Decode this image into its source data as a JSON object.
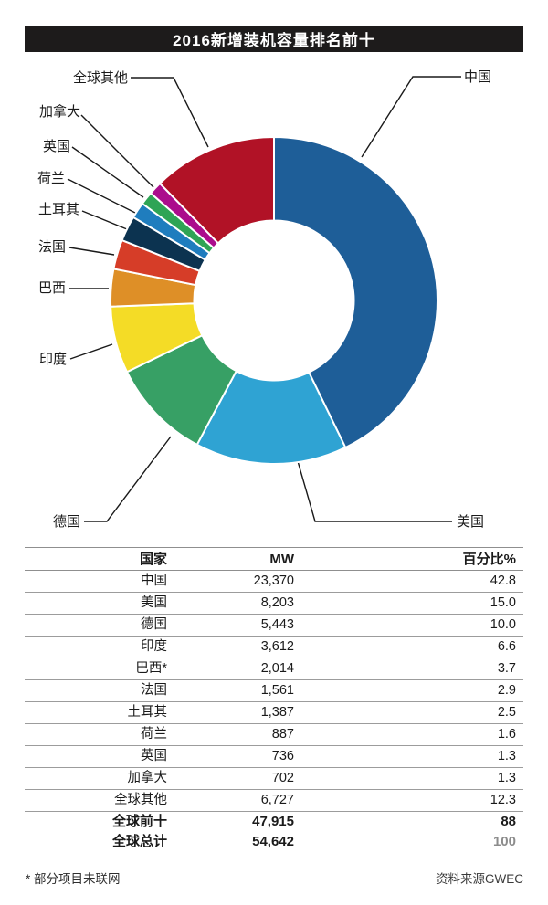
{
  "title": "2016新增装机容量排名前十",
  "chart_data": {
    "type": "pie",
    "subtype": "donut",
    "title": "2016新增装机容量排名前十",
    "unit": "MW",
    "slices": [
      {
        "id": "china",
        "label": "中国",
        "mw": 23370,
        "pct": 42.8,
        "color": "#1e5e98"
      },
      {
        "id": "usa",
        "label": "美国",
        "mw": 8203,
        "pct": 15.0,
        "color": "#2fa3d3"
      },
      {
        "id": "germany",
        "label": "德国",
        "mw": 5443,
        "pct": 10.0,
        "color": "#37a065"
      },
      {
        "id": "india",
        "label": "印度",
        "mw": 3612,
        "pct": 6.6,
        "color": "#f4dc26"
      },
      {
        "id": "brazil",
        "label": "巴西",
        "mw": 2014,
        "pct": 3.7,
        "color": "#de8f27"
      },
      {
        "id": "france",
        "label": "法国",
        "mw": 1561,
        "pct": 2.9,
        "color": "#d63d28"
      },
      {
        "id": "turkey",
        "label": "土耳其",
        "mw": 1387,
        "pct": 2.5,
        "color": "#0c3350"
      },
      {
        "id": "netherlands",
        "label": "荷兰",
        "mw": 887,
        "pct": 1.6,
        "color": "#1f7dbe"
      },
      {
        "id": "uk",
        "label": "英国",
        "mw": 736,
        "pct": 1.3,
        "color": "#2fa455"
      },
      {
        "id": "canada",
        "label": "加拿大",
        "mw": 702,
        "pct": 1.3,
        "color": "#ab0d8c"
      },
      {
        "id": "rest",
        "label": "全球其他",
        "mw": 6727,
        "pct": 12.3,
        "color": "#b11226"
      }
    ]
  },
  "table": {
    "headers": [
      "国家",
      "MW",
      "百分比%"
    ],
    "rows": [
      {
        "country": "中国",
        "mw": "23,370",
        "pct": "42.8"
      },
      {
        "country": "美国",
        "mw": "8,203",
        "pct": "15.0"
      },
      {
        "country": "德国",
        "mw": "5,443",
        "pct": "10.0"
      },
      {
        "country": "印度",
        "mw": "3,612",
        "pct": "6.6"
      },
      {
        "country": "巴西*",
        "mw": "2,014",
        "pct": "3.7"
      },
      {
        "country": "法国",
        "mw": "1,561",
        "pct": "2.9"
      },
      {
        "country": "土耳其",
        "mw": "1,387",
        "pct": "2.5"
      },
      {
        "country": "荷兰",
        "mw": "887",
        "pct": "1.6"
      },
      {
        "country": "英国",
        "mw": "736",
        "pct": "1.3"
      },
      {
        "country": "加拿大",
        "mw": "702",
        "pct": "1.3"
      },
      {
        "country": "全球其他",
        "mw": "6,727",
        "pct": "12.3"
      }
    ],
    "totals": [
      {
        "country": "全球前十",
        "mw": "47,915",
        "pct": "88",
        "pct_muted": false
      },
      {
        "country": "全球总计",
        "mw": "54,642",
        "pct": "100",
        "pct_muted": true
      }
    ]
  },
  "footnote": "* 部分项目未联网",
  "source": "资料来源GWEC",
  "colors": {
    "title_bg": "#1d1b1b",
    "title_text": "#ffffff",
    "callout_line": "#1a1a1a",
    "table_line": "#9c9c9c",
    "muted_text": "#8c8c8c"
  }
}
